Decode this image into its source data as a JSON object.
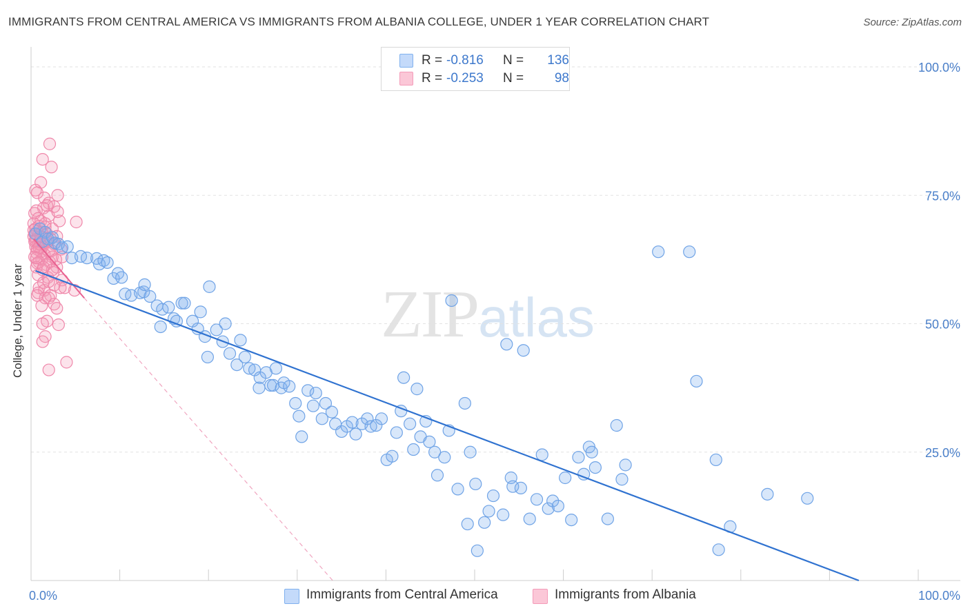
{
  "title": "IMMIGRANTS FROM CENTRAL AMERICA VS IMMIGRANTS FROM ALBANIA COLLEGE, UNDER 1 YEAR CORRELATION CHART",
  "source": "Source: ZipAtlas.com",
  "watermark": {
    "zip": "ZIP",
    "atlas": "atlas"
  },
  "legend": {
    "rows": [
      {
        "r_label": "R =",
        "r_value": "-0.816",
        "n_label": "N =",
        "n_value": "136",
        "color": "#7fb0ee"
      },
      {
        "r_label": "R =",
        "r_value": "-0.253",
        "n_label": "N =",
        "n_value": "98",
        "color": "#f49ab8"
      }
    ]
  },
  "bottom_legend": {
    "series1": "Immigrants from Central America",
    "series2": "Immigrants from Albania"
  },
  "chart_data": {
    "type": "scatter",
    "title": "IMMIGRANTS FROM CENTRAL AMERICA VS IMMIGRANTS FROM ALBANIA COLLEGE, UNDER 1 YEAR CORRELATION CHART",
    "xlabel": "",
    "ylabel": "College, Under 1 year",
    "xlim": [
      0,
      100
    ],
    "ylim": [
      0,
      100
    ],
    "x_tick_labels": [
      "0.0%",
      "100.0%"
    ],
    "y_tick_labels": [
      "100.0%",
      "75.0%",
      "50.0%",
      "25.0%"
    ],
    "y_ticks": [
      100,
      75,
      50,
      25
    ],
    "grid": true,
    "legend_position": "top-center",
    "series": [
      {
        "name": "Immigrants from Central America",
        "color": "#7fb0ee",
        "trend": {
          "x": [
            0.5,
            93.3
          ],
          "y": [
            60.3,
            0.0
          ],
          "style": "solid"
        },
        "points": [
          [
            0.5,
            67.5
          ],
          [
            1.0,
            68.5
          ],
          [
            1.3,
            66.0
          ],
          [
            1.6,
            67.8
          ],
          [
            1.9,
            66.5
          ],
          [
            2.4,
            66.8
          ],
          [
            2.7,
            65.7
          ],
          [
            3.1,
            65.5
          ],
          [
            3.5,
            64.8
          ],
          [
            4.1,
            65.0
          ],
          [
            4.6,
            62.8
          ],
          [
            5.6,
            63.1
          ],
          [
            6.3,
            62.8
          ],
          [
            7.4,
            62.7
          ],
          [
            7.7,
            61.6
          ],
          [
            8.2,
            62.3
          ],
          [
            8.6,
            61.9
          ],
          [
            9.3,
            58.8
          ],
          [
            9.8,
            59.8
          ],
          [
            10.2,
            59.0
          ],
          [
            10.6,
            55.8
          ],
          [
            11.3,
            55.5
          ],
          [
            12.3,
            56.0
          ],
          [
            12.7,
            56.2
          ],
          [
            12.8,
            57.6
          ],
          [
            13.4,
            55.3
          ],
          [
            14.2,
            53.5
          ],
          [
            14.8,
            52.8
          ],
          [
            14.6,
            49.4
          ],
          [
            15.5,
            53.2
          ],
          [
            16.1,
            51.0
          ],
          [
            16.4,
            50.5
          ],
          [
            17.0,
            54.0
          ],
          [
            17.3,
            54.0
          ],
          [
            18.2,
            50.5
          ],
          [
            18.8,
            49.0
          ],
          [
            19.1,
            52.3
          ],
          [
            19.6,
            47.5
          ],
          [
            19.9,
            43.5
          ],
          [
            20.1,
            57.2
          ],
          [
            20.9,
            48.8
          ],
          [
            21.6,
            46.5
          ],
          [
            21.9,
            50.0
          ],
          [
            22.4,
            44.2
          ],
          [
            23.2,
            42.0
          ],
          [
            23.6,
            46.8
          ],
          [
            24.1,
            43.5
          ],
          [
            24.6,
            41.3
          ],
          [
            25.2,
            41.0
          ],
          [
            25.7,
            37.5
          ],
          [
            25.8,
            39.5
          ],
          [
            26.5,
            40.5
          ],
          [
            27.0,
            38.0
          ],
          [
            27.3,
            38.0
          ],
          [
            27.6,
            41.3
          ],
          [
            28.2,
            37.5
          ],
          [
            28.5,
            38.5
          ],
          [
            29.1,
            37.8
          ],
          [
            29.8,
            34.5
          ],
          [
            30.2,
            32.0
          ],
          [
            30.5,
            28.0
          ],
          [
            31.2,
            37.0
          ],
          [
            31.8,
            34.0
          ],
          [
            32.1,
            36.5
          ],
          [
            32.8,
            31.5
          ],
          [
            33.2,
            34.5
          ],
          [
            33.9,
            32.8
          ],
          [
            34.3,
            30.5
          ],
          [
            35.0,
            29.0
          ],
          [
            35.6,
            30.0
          ],
          [
            36.2,
            30.8
          ],
          [
            36.6,
            28.5
          ],
          [
            37.3,
            30.5
          ],
          [
            37.9,
            31.5
          ],
          [
            38.3,
            30.0
          ],
          [
            38.9,
            30.2
          ],
          [
            39.5,
            31.5
          ],
          [
            40.1,
            23.5
          ],
          [
            40.7,
            24.2
          ],
          [
            41.2,
            28.8
          ],
          [
            41.7,
            33.0
          ],
          [
            42.0,
            39.5
          ],
          [
            42.7,
            30.5
          ],
          [
            43.1,
            25.5
          ],
          [
            43.5,
            37.3
          ],
          [
            43.9,
            28.0
          ],
          [
            44.5,
            31.0
          ],
          [
            44.9,
            27.0
          ],
          [
            45.5,
            25.0
          ],
          [
            45.8,
            20.5
          ],
          [
            46.6,
            24.0
          ],
          [
            47.1,
            29.2
          ],
          [
            47.4,
            54.5
          ],
          [
            48.1,
            17.8
          ],
          [
            48.9,
            34.5
          ],
          [
            49.2,
            11.0
          ],
          [
            49.5,
            25.0
          ],
          [
            50.1,
            18.8
          ],
          [
            50.3,
            5.8
          ],
          [
            51.1,
            11.3
          ],
          [
            51.6,
            13.5
          ],
          [
            52.1,
            16.5
          ],
          [
            53.2,
            12.8
          ],
          [
            53.6,
            46.0
          ],
          [
            54.1,
            20.0
          ],
          [
            54.3,
            18.3
          ],
          [
            55.2,
            18.0
          ],
          [
            55.5,
            44.8
          ],
          [
            56.2,
            12.0
          ],
          [
            57.0,
            15.8
          ],
          [
            57.6,
            24.5
          ],
          [
            58.3,
            14.0
          ],
          [
            58.8,
            15.5
          ],
          [
            59.4,
            14.5
          ],
          [
            60.2,
            20.0
          ],
          [
            60.9,
            11.8
          ],
          [
            61.7,
            24.0
          ],
          [
            62.3,
            20.7
          ],
          [
            62.9,
            26.0
          ],
          [
            63.2,
            25.0
          ],
          [
            63.6,
            22.0
          ],
          [
            65.0,
            12.0
          ],
          [
            66.0,
            30.2
          ],
          [
            66.6,
            19.7
          ],
          [
            67.0,
            22.5
          ],
          [
            70.7,
            64.0
          ],
          [
            74.2,
            64.0
          ],
          [
            75.0,
            38.8
          ],
          [
            77.2,
            23.5
          ],
          [
            77.5,
            6.0
          ],
          [
            78.8,
            10.5
          ],
          [
            83.0,
            16.8
          ],
          [
            87.5,
            16.0
          ]
        ]
      },
      {
        "name": "Immigrants from Albania",
        "color": "#f49ab8",
        "trend": {
          "x": [
            0.3,
            6.0
          ],
          "y": [
            66.5,
            55.0
          ],
          "style": "solid",
          "extended": {
            "x": [
              6.0,
              34.0
            ],
            "y": [
              55.0,
              0.0
            ],
            "style": "dashed"
          }
        },
        "points": [
          [
            2.1,
            85.0
          ],
          [
            1.3,
            82.0
          ],
          [
            2.3,
            80.5
          ],
          [
            1.1,
            77.5
          ],
          [
            0.5,
            76.0
          ],
          [
            0.7,
            75.5
          ],
          [
            3.0,
            75.0
          ],
          [
            1.5,
            74.5
          ],
          [
            2.0,
            73.5
          ],
          [
            1.8,
            73.0
          ],
          [
            1.4,
            72.5
          ],
          [
            2.6,
            72.8
          ],
          [
            0.6,
            72.0
          ],
          [
            0.4,
            71.5
          ],
          [
            2.0,
            71.0
          ],
          [
            0.8,
            70.5
          ],
          [
            1.1,
            70.0
          ],
          [
            3.2,
            70.0
          ],
          [
            5.1,
            69.8
          ],
          [
            0.3,
            69.5
          ],
          [
            0.9,
            69.0
          ],
          [
            1.6,
            68.8
          ],
          [
            0.5,
            68.5
          ],
          [
            2.4,
            68.5
          ],
          [
            0.7,
            68.0
          ],
          [
            1.2,
            67.8
          ],
          [
            0.4,
            67.5
          ],
          [
            1.8,
            67.5
          ],
          [
            0.8,
            67.2
          ],
          [
            0.3,
            67.0
          ],
          [
            2.9,
            67.0
          ],
          [
            1.4,
            66.8
          ],
          [
            0.6,
            66.5
          ],
          [
            2.2,
            66.5
          ],
          [
            0.4,
            66.0
          ],
          [
            1.0,
            66.0
          ],
          [
            1.7,
            65.8
          ],
          [
            0.8,
            65.5
          ],
          [
            2.6,
            65.5
          ],
          [
            0.5,
            65.0
          ],
          [
            1.3,
            65.0
          ],
          [
            0.7,
            64.5
          ],
          [
            3.4,
            64.5
          ],
          [
            1.1,
            64.0
          ],
          [
            2.0,
            64.0
          ],
          [
            0.6,
            63.8
          ],
          [
            1.5,
            63.5
          ],
          [
            0.4,
            63.0
          ],
          [
            2.4,
            63.0
          ],
          [
            3.5,
            63.0
          ],
          [
            1.2,
            62.5
          ],
          [
            0.9,
            62.0
          ],
          [
            2.1,
            62.0
          ],
          [
            0.7,
            61.8
          ],
          [
            1.7,
            61.5
          ],
          [
            0.6,
            61.0
          ],
          [
            2.9,
            61.0
          ],
          [
            1.3,
            60.5
          ],
          [
            2.5,
            60.0
          ],
          [
            0.8,
            59.5
          ],
          [
            1.9,
            59.0
          ],
          [
            3.5,
            58.5
          ],
          [
            1.4,
            58.0
          ],
          [
            2.6,
            57.5
          ],
          [
            0.9,
            57.0
          ],
          [
            3.3,
            57.0
          ],
          [
            1.5,
            56.5
          ],
          [
            4.9,
            56.5
          ],
          [
            0.8,
            56.0
          ],
          [
            2.2,
            55.5
          ],
          [
            1.6,
            55.0
          ],
          [
            2.0,
            55.0
          ],
          [
            0.7,
            55.5
          ],
          [
            2.6,
            53.8
          ],
          [
            1.2,
            53.5
          ],
          [
            2.9,
            53.0
          ],
          [
            1.8,
            50.5
          ],
          [
            1.3,
            50.0
          ],
          [
            3.1,
            49.8
          ],
          [
            1.6,
            47.5
          ],
          [
            1.3,
            46.5
          ],
          [
            4.0,
            42.5
          ],
          [
            2.0,
            41.0
          ],
          [
            1.0,
            65.5
          ],
          [
            1.9,
            66.0
          ],
          [
            2.3,
            64.2
          ],
          [
            0.5,
            66.2
          ],
          [
            1.1,
            67.0
          ],
          [
            0.3,
            68.2
          ],
          [
            1.6,
            69.5
          ],
          [
            2.8,
            62.5
          ],
          [
            3.8,
            57.0
          ],
          [
            2.4,
            60.5
          ],
          [
            0.9,
            64.8
          ],
          [
            1.4,
            61.0
          ],
          [
            2.0,
            58.2
          ],
          [
            0.6,
            62.8
          ],
          [
            3.0,
            71.8
          ]
        ]
      }
    ]
  }
}
